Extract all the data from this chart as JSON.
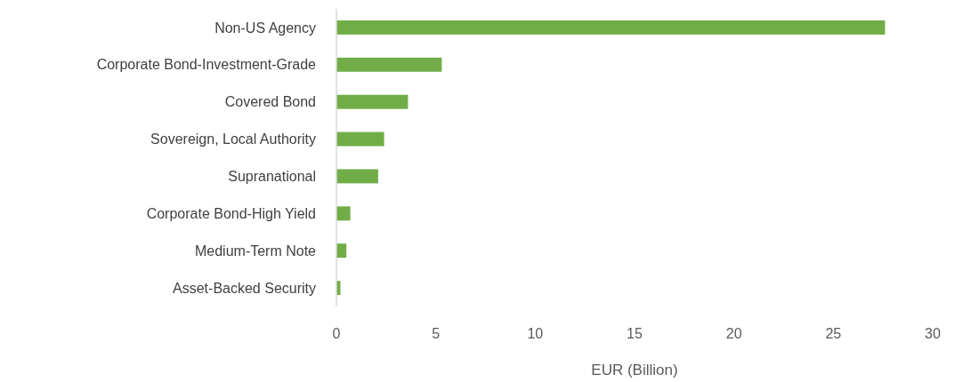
{
  "chart_data": {
    "type": "bar",
    "orientation": "horizontal",
    "xlabel": "EUR (Billion)",
    "categories": [
      "Non-US Agency",
      "Corporate Bond-Investment-Grade",
      "Covered Bond",
      "Sovereign, Local Authority",
      "Supranational",
      "Corporate Bond-High Yield",
      "Medium-Term Note",
      "Asset-Backed Security"
    ],
    "values": [
      27.6,
      5.3,
      3.6,
      2.4,
      2.1,
      0.7,
      0.5,
      0.2
    ],
    "color": "#70ad47",
    "xlim": [
      0,
      30
    ],
    "xticks": [
      0,
      5,
      10,
      15,
      20,
      25,
      30
    ],
    "grid": false
  }
}
